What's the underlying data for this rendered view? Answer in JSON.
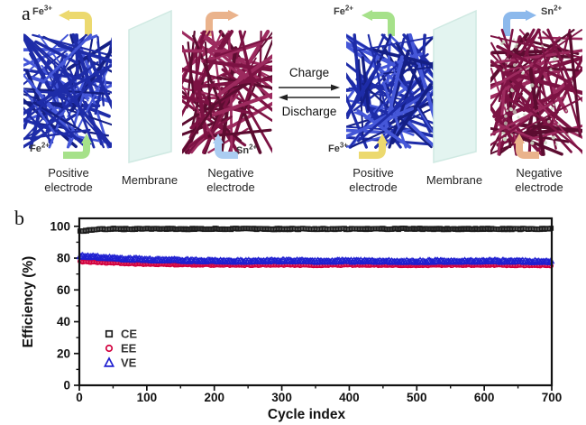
{
  "panel_a": {
    "label": "a",
    "charge_label": "Charge",
    "discharge_label": "Discharge",
    "electrode1": {
      "caption_line1": "Positive",
      "caption_line2": "electrode",
      "top_ion_base": "Fe",
      "top_ion_sup": "3+",
      "bottom_ion_base": "Fe",
      "bottom_ion_sup": "2+"
    },
    "membrane1": {
      "caption": "Membrane"
    },
    "electrode2": {
      "caption_line1": "Negative",
      "caption_line2": "electrode",
      "bottom_ion_base": "Sn",
      "bottom_ion_sup": "2+"
    },
    "electrode3": {
      "caption_line1": "Positive",
      "caption_line2": "electrode",
      "top_ion_base": "Fe",
      "top_ion_sup": "2+",
      "bottom_ion_base": "Fe",
      "bottom_ion_sup": "3+"
    },
    "membrane2": {
      "caption": "Membrane"
    },
    "electrode4": {
      "caption_line1": "Negative",
      "caption_line2": "electrode",
      "top_ion_base": "Sn",
      "top_ion_sup": "2+"
    },
    "colors": {
      "mesh_blue": "#1e2ca8",
      "mesh_blue_light": "#4557d8",
      "mesh_blue_deep": "#141f85",
      "mesh_maroon": "#7c1243",
      "mesh_maroon_light": "#9c2a5e",
      "mesh_maroon_deep": "#5c0c30",
      "membrane_fill": "#e3f4f0",
      "dot_color": "#ccd8c4",
      "arrow_yellow": "#ecd96f",
      "arrow_green": "#a6e18a",
      "arrow_orange": "#eab38c",
      "arrow_blue_light": "#abcdf2",
      "arrow_blue": "#8cb9ec"
    }
  },
  "panel_b": {
    "label": "b"
  },
  "chart_data": {
    "type": "scatter",
    "title": "",
    "xlabel": "Cycle index",
    "ylabel": "Efficiency (%)",
    "xlim": [
      0,
      700
    ],
    "ylim": [
      0,
      105
    ],
    "x_major_ticks": [
      0,
      100,
      200,
      300,
      400,
      500,
      600,
      700
    ],
    "x_minor_step": 50,
    "y_major_ticks": [
      0,
      20,
      40,
      60,
      80,
      100
    ],
    "y_minor_step": 10,
    "grid": false,
    "legend_position": "lower-left",
    "legend": [
      "CE",
      "EE",
      "VE"
    ],
    "marker_step": 2,
    "anchors_x": [
      1,
      25,
      50,
      75,
      100,
      150,
      200,
      250,
      300,
      350,
      400,
      450,
      500,
      550,
      600,
      650,
      700
    ],
    "series": [
      {
        "name": "CE",
        "marker": "square",
        "color": "#1c1c1c",
        "jitter": 0.4,
        "anchors_y": [
          96.8,
          98.3,
          98.4,
          98.3,
          98.4,
          98.3,
          98.4,
          98.4,
          98.3,
          98.4,
          98.3,
          98.4,
          98.4,
          98.3,
          98.4,
          98.3,
          98.4
        ]
      },
      {
        "name": "EE",
        "marker": "circle",
        "color": "#d2003e",
        "jitter": 0.3,
        "anchors_y": [
          77.9,
          77.4,
          76.9,
          76.5,
          76.2,
          75.9,
          75.7,
          75.6,
          75.8,
          75.5,
          75.7,
          75.6,
          75.5,
          75.6,
          75.7,
          75.5,
          75.4
        ]
      },
      {
        "name": "VE",
        "marker": "triangle",
        "color": "#1f1fd0",
        "jitter": 0.5,
        "anchors_y": [
          81.4,
          80.6,
          79.9,
          79.4,
          79.0,
          78.5,
          78.2,
          78.0,
          78.3,
          77.9,
          78.1,
          78.0,
          77.9,
          78.0,
          78.1,
          77.9,
          77.8
        ]
      }
    ]
  }
}
